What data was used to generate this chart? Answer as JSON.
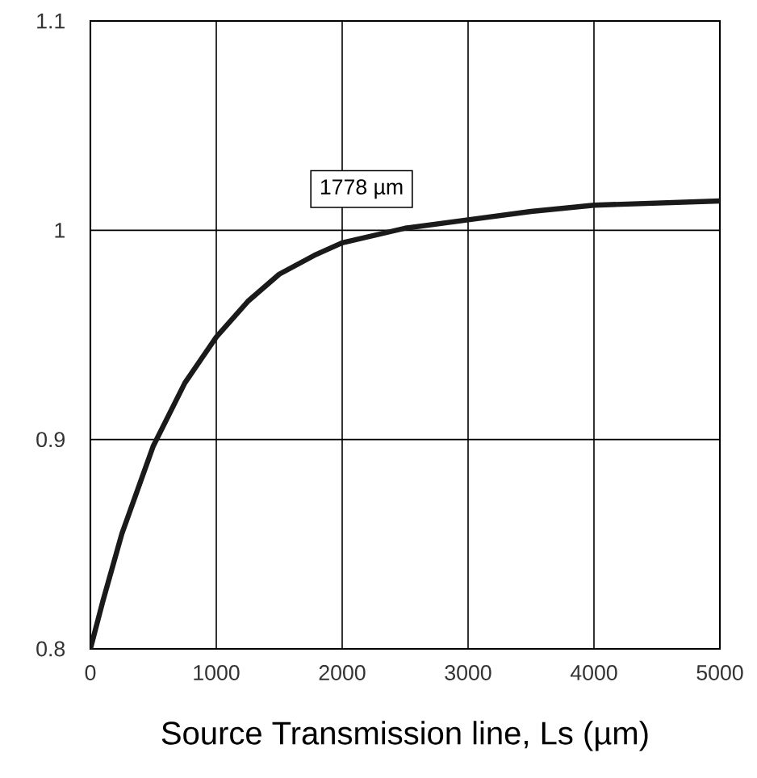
{
  "chart_data": {
    "type": "line",
    "xlabel": "Source Transmission line, Ls (µm)",
    "x": [
      0,
      100,
      250,
      500,
      750,
      1000,
      1250,
      1500,
      1778,
      2000,
      2500,
      3000,
      3500,
      4000,
      4500,
      5000
    ],
    "series": [
      {
        "color": "#1a1a1a",
        "values": [
          0.8,
          0.823,
          0.855,
          0.897,
          0.927,
          0.949,
          0.966,
          0.979,
          0.988,
          0.994,
          1.001,
          1.005,
          1.009,
          1.012,
          1.013,
          1.014
        ]
      }
    ],
    "xlim": [
      0,
      5000
    ],
    "ylim": [
      0.8,
      1.1
    ],
    "xticks": [
      0,
      1000,
      2000,
      3000,
      4000,
      5000
    ],
    "yticks": [
      0.8,
      0.9,
      1,
      1.1
    ],
    "grid": true,
    "marker": "none",
    "line_style": "solid",
    "annotations": [
      {
        "text": "1778 µm",
        "x": 1778,
        "y": 0.988
      }
    ]
  }
}
